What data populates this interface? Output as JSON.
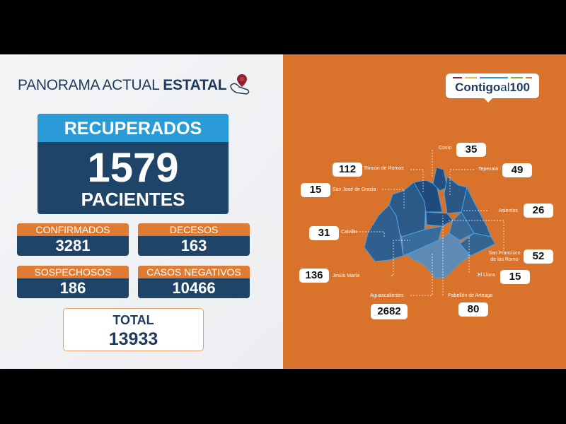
{
  "header": {
    "title_light": "PANORAMA ACTUAL",
    "title_bold": "ESTATAL"
  },
  "recuperados": {
    "label": "RECUPERADOS",
    "value": "1579",
    "unit": "PACIENTES"
  },
  "cards": [
    {
      "label": "CONFIRMADOS",
      "value": "3281"
    },
    {
      "label": "DECESOS",
      "value": "163"
    },
    {
      "label": "SOSPECHOSOS",
      "value": "186"
    },
    {
      "label": "CASOS NEGATIVOS",
      "value": "10466"
    }
  ],
  "total": {
    "label": "TOTAL",
    "value": "13933"
  },
  "logo": {
    "text_bold": "Contigo",
    "text_light": "al",
    "text_num": "100",
    "bar_colors": [
      "#8b2331",
      "#e7b94a",
      "#2a9bd6",
      "#7cb342",
      "#e07b34"
    ]
  },
  "colors": {
    "orange": "#d9722b",
    "navy": "#1e4468",
    "blue": "#2a9bd6"
  },
  "municipios": [
    {
      "name": "Cosío",
      "value": "35"
    },
    {
      "name": "Rincón de Romos",
      "value": "112"
    },
    {
      "name": "Tepezalá",
      "value": "49"
    },
    {
      "name": "San José de Gracia",
      "value": "15"
    },
    {
      "name": "Asientos",
      "value": "26"
    },
    {
      "name": "Calvillo",
      "value": "31"
    },
    {
      "name": "San Francisco de los Romo",
      "value": "52"
    },
    {
      "name": "Jesús María",
      "value": "136"
    },
    {
      "name": "El Llano",
      "value": "15"
    },
    {
      "name": "Aguascalientes",
      "value": "2682"
    },
    {
      "name": "Pabellón de Arteaga",
      "value": "80"
    }
  ]
}
